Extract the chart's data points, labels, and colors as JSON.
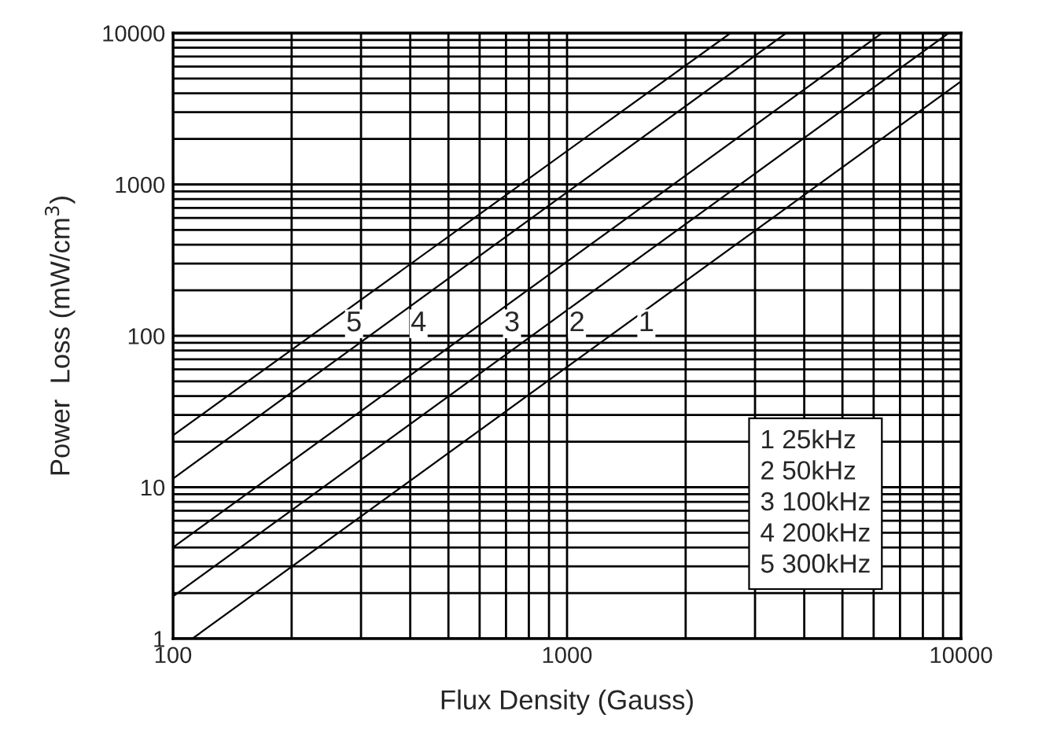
{
  "chart_data": {
    "type": "line",
    "xlabel": "Flux Density (Gauss)",
    "ylabel": "Power  Loss (mW/cm$^{3}$)",
    "log": "xy",
    "grid": true,
    "marker": "none",
    "line_style": "solid",
    "xlim": [
      100,
      10000
    ],
    "ylim": [
      1,
      10000
    ],
    "xticks": [
      100,
      1000,
      10000
    ],
    "yticks": [
      1,
      10,
      100,
      1000,
      10000
    ],
    "series": [
      {
        "color": "#000000",
        "x": [
          112,
          10000
        ],
        "values": [
          1,
          4800
        ]
      },
      {
        "color": "#000000",
        "x": [
          100,
          9300
        ],
        "values": [
          1.9,
          10000
        ]
      },
      {
        "color": "#000000",
        "x": [
          100,
          6300
        ],
        "values": [
          4,
          10000
        ]
      },
      {
        "color": "#000000",
        "x": [
          100,
          3600
        ],
        "values": [
          11.4,
          10000
        ]
      },
      {
        "color": "#000000",
        "x": [
          100,
          2600
        ],
        "values": [
          22,
          10000
        ]
      }
    ],
    "annotations": [
      {
        "text": "1",
        "x": 1590,
        "y": 120
      },
      {
        "text": "2",
        "x": 1060,
        "y": 120
      },
      {
        "text": "3",
        "x": 725,
        "y": 120
      },
      {
        "text": "4",
        "x": 420,
        "y": 120
      },
      {
        "text": "5",
        "x": 288,
        "y": 120
      },
      "1 25kHz\n2 50kHz\n3 100kHz\n4 200kHz\n5 300kHz"
    ]
  }
}
